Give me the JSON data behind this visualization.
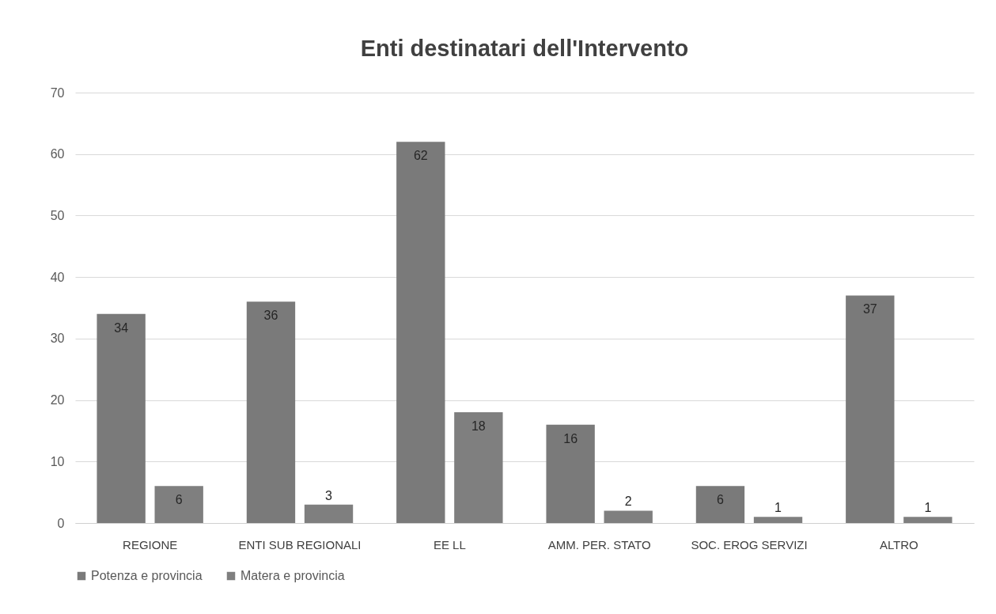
{
  "chart_data": {
    "type": "bar",
    "title": "Enti destinatari dell'Intervento",
    "categories": [
      "REGIONE",
      "ENTI SUB REGIONALI",
      "EE LL",
      "AMM. PER. STATO",
      "SOC. EROG SERVIZI",
      "ALTRO"
    ],
    "series": [
      {
        "name": "Potenza e provincia",
        "color": "#7a7a7a",
        "values": [
          34,
          36,
          62,
          16,
          6,
          37
        ]
      },
      {
        "name": "Matera e provincia",
        "color": "#7f7f7f",
        "values": [
          6,
          3,
          18,
          2,
          1,
          1
        ]
      }
    ],
    "ylim": [
      0,
      70
    ],
    "yticks": [
      0,
      10,
      20,
      30,
      40,
      50,
      60,
      70
    ],
    "grid": "y",
    "legend": "bottom",
    "data_labels": true
  }
}
